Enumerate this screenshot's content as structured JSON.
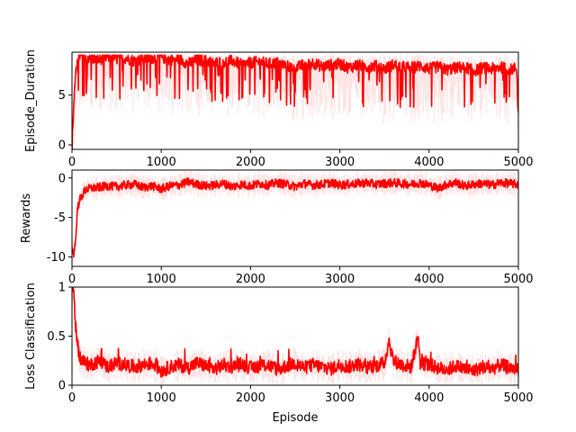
{
  "chart_data": [
    {
      "type": "line",
      "title": "",
      "xlabel": "",
      "ylabel": "Episode_Duration",
      "xlim": [
        0,
        5000
      ],
      "ylim": [
        -0.45,
        9.3
      ],
      "xticks": [
        0,
        1000,
        2000,
        3000,
        4000,
        5000
      ],
      "yticks": [
        0,
        5
      ],
      "grid": false,
      "color": "#ff0000",
      "series": [
        {
          "style": "smoothed-with-raw-band",
          "x": [
            0,
            30,
            60,
            100,
            200,
            300,
            400,
            500,
            600,
            700,
            800,
            900,
            1000,
            1100,
            1200,
            1300,
            1400,
            1500,
            1600,
            1700,
            1800,
            1900,
            2000,
            2100,
            2200,
            2300,
            2400,
            2500,
            2600,
            2700,
            2800,
            2900,
            3000,
            3100,
            3200,
            3300,
            3400,
            3500,
            3600,
            3700,
            3800,
            3900,
            4000,
            4100,
            4200,
            4300,
            4400,
            4500,
            4600,
            4700,
            4800,
            4900,
            4980,
            5000
          ],
          "y": [
            0.2,
            5.5,
            8.6,
            8.8,
            8.5,
            8.3,
            8.6,
            8.4,
            8.5,
            8.2,
            8.4,
            8.5,
            8.6,
            8.3,
            8.4,
            7.9,
            8.3,
            8.2,
            8.0,
            8.1,
            8.2,
            7.8,
            8.0,
            8.1,
            7.9,
            8.0,
            7.7,
            7.5,
            7.8,
            8.0,
            7.6,
            7.8,
            7.9,
            7.5,
            7.8,
            7.6,
            7.7,
            7.4,
            7.8,
            7.6,
            7.5,
            7.7,
            7.4,
            7.6,
            7.3,
            7.5,
            7.6,
            7.2,
            7.5,
            7.4,
            7.6,
            7.3,
            7.5,
            2.8
          ]
        }
      ]
    },
    {
      "type": "line",
      "title": "",
      "xlabel": "",
      "ylabel": "Rewards",
      "xlim": [
        0,
        5000
      ],
      "ylim": [
        -11.2,
        1.0
      ],
      "xticks": [
        0,
        1000,
        2000,
        3000,
        4000,
        5000
      ],
      "yticks": [
        -10,
        -5,
        0
      ],
      "grid": false,
      "color": "#ff0000",
      "series": [
        {
          "style": "smoothed-with-raw-band",
          "x": [
            0,
            20,
            40,
            60,
            80,
            100,
            150,
            200,
            300,
            400,
            500,
            600,
            700,
            800,
            900,
            1000,
            1100,
            1200,
            1300,
            1400,
            1500,
            1600,
            1700,
            1800,
            1900,
            2000,
            2100,
            2200,
            2300,
            2400,
            2500,
            2600,
            2700,
            2800,
            2900,
            3000,
            3100,
            3200,
            3300,
            3400,
            3500,
            3600,
            3700,
            3800,
            3900,
            4000,
            4100,
            4200,
            4300,
            4400,
            4500,
            4600,
            4700,
            4800,
            4900,
            5000
          ],
          "y": [
            -9.0,
            -9.5,
            -8.0,
            -4.0,
            -3.0,
            -2.5,
            -1.5,
            -1.3,
            -1.2,
            -1.0,
            -1.1,
            -0.9,
            -0.8,
            -1.2,
            -1.0,
            -1.4,
            -1.0,
            -0.9,
            -0.5,
            -0.8,
            -1.0,
            -0.9,
            -0.7,
            -1.1,
            -0.8,
            -1.0,
            -0.7,
            -0.9,
            -0.6,
            -0.8,
            -1.1,
            -0.7,
            -0.9,
            -0.8,
            -0.6,
            -0.9,
            -0.8,
            -0.7,
            -0.6,
            -0.8,
            -0.7,
            -0.6,
            -0.7,
            -0.8,
            -0.6,
            -0.9,
            -1.3,
            -0.8,
            -0.6,
            -1.0,
            -0.8,
            -0.7,
            -0.9,
            -0.6,
            -0.7,
            -0.8
          ]
        }
      ]
    },
    {
      "type": "line",
      "title": "",
      "xlabel": "Episode",
      "ylabel": "Loss Classification",
      "xlim": [
        0,
        5000
      ],
      "ylim": [
        0.0,
        1.0
      ],
      "xticks": [
        0,
        1000,
        2000,
        3000,
        4000,
        5000
      ],
      "yticks": [
        0.0,
        0.5,
        1.0
      ],
      "grid": false,
      "color": "#ff0000",
      "series": [
        {
          "style": "smoothed-with-raw-band",
          "x": [
            0,
            20,
            40,
            60,
            80,
            100,
            150,
            200,
            300,
            400,
            500,
            600,
            700,
            800,
            900,
            1000,
            1100,
            1200,
            1300,
            1400,
            1500,
            1600,
            1700,
            1800,
            1900,
            2000,
            2100,
            2200,
            2300,
            2400,
            2500,
            2600,
            2700,
            2800,
            2900,
            3000,
            3100,
            3200,
            3300,
            3400,
            3500,
            3550,
            3600,
            3700,
            3800,
            3880,
            3900,
            4000,
            4100,
            4200,
            4300,
            4400,
            4500,
            4600,
            4700,
            4800,
            4900,
            5000
          ],
          "y": [
            1.0,
            0.95,
            0.6,
            0.42,
            0.3,
            0.25,
            0.22,
            0.2,
            0.24,
            0.18,
            0.22,
            0.2,
            0.18,
            0.2,
            0.22,
            0.14,
            0.18,
            0.2,
            0.17,
            0.22,
            0.19,
            0.16,
            0.2,
            0.18,
            0.21,
            0.17,
            0.19,
            0.2,
            0.15,
            0.19,
            0.22,
            0.17,
            0.2,
            0.18,
            0.16,
            0.2,
            0.18,
            0.21,
            0.17,
            0.19,
            0.22,
            0.45,
            0.24,
            0.2,
            0.18,
            0.5,
            0.22,
            0.2,
            0.17,
            0.15,
            0.19,
            0.16,
            0.14,
            0.18,
            0.16,
            0.2,
            0.17,
            0.16
          ]
        }
      ]
    }
  ]
}
